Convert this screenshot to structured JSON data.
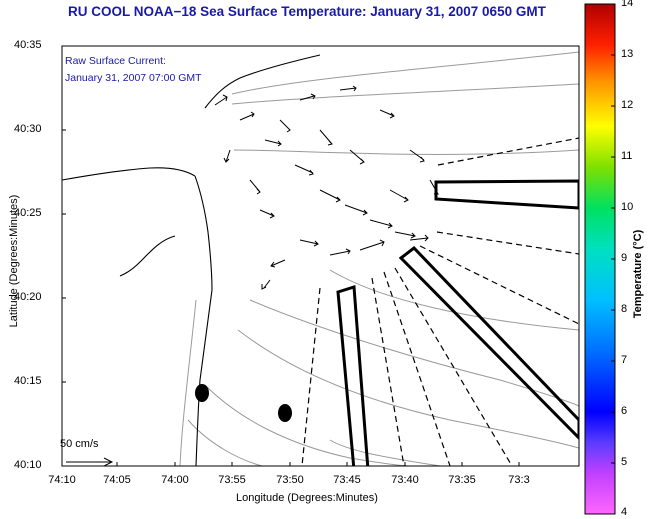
{
  "title": "RU COOL  NOAA−18  Sea Surface Temperature:  January 31, 2007 0650 GMT",
  "current_label": {
    "line1": "Raw Surface Current:",
    "line2": "January 31, 2007 07:00 GMT"
  },
  "axes": {
    "xlabel": "Longitude (Degrees:Minutes)",
    "ylabel": "Latitude (Degrees:Minutes)",
    "xticks": [
      "74:10",
      "74:05",
      "74:00",
      "73:55",
      "73:50",
      "73:45",
      "73:40",
      "73:35",
      "73:3"
    ],
    "yticks": [
      "40:35",
      "40:30",
      "40:25",
      "40:20",
      "40:15",
      "40:10"
    ]
  },
  "colorbar": {
    "label": "Temperature (°C)",
    "ticks": [
      "14",
      "13",
      "12",
      "11",
      "10",
      "9",
      "8",
      "7",
      "6",
      "5",
      "4"
    ],
    "range": [
      4,
      14
    ]
  },
  "scale_arrow": {
    "label": "50 cm/s"
  },
  "colors": {
    "title": "#1a1aa8",
    "coast": "#000000",
    "bathymetry": "#9a9a9a",
    "vectors": "#000000"
  }
}
